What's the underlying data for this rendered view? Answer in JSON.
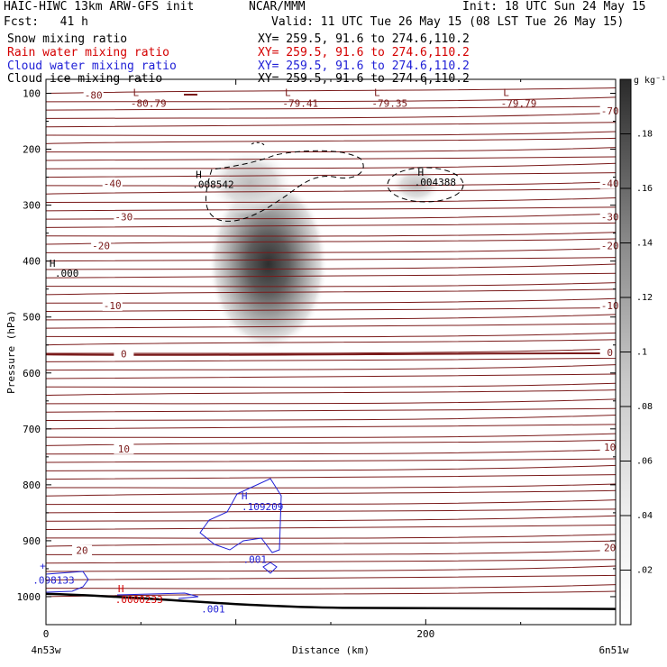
{
  "header": {
    "left1": "HAIC-HIWC 13km ARW-GFS init",
    "center1": "NCAR/MMM",
    "right1": "Init: 18 UTC Sun 24 May 15",
    "left2": "Fcst:   41 h",
    "right2": "Valid: 11 UTC Tue 26 May 15 (08 LST Tue 26 May 15)",
    "fields": [
      {
        "name": "Snow mixing ratio",
        "xy": "XY= 259.5, 91.6 to 274.6,110.2",
        "color": "#000000"
      },
      {
        "name": "Rain water mixing ratio",
        "xy": "XY= 259.5, 91.6 to 274.6,110.2",
        "color": "#d40000"
      },
      {
        "name": "Cloud water mixing ratio",
        "xy": "XY= 259.5, 91.6 to 274.6,110.2",
        "color": "#1f1fd6"
      },
      {
        "name": "Cloud ice mixing ratio",
        "xy": "XY= 259.5, 91.6 to 274.6,110.2",
        "color": "#000000"
      }
    ]
  },
  "chart_data": {
    "type": "heatmap",
    "title": "HAIC-HIWC 13km ARW-GFS init",
    "xlabel": "Distance (km)",
    "ylabel": "Pressure (hPa)",
    "xlim": [
      0,
      300
    ],
    "ylim_pressure": [
      1050,
      75
    ],
    "x_ticks": [
      0,
      200
    ],
    "y_ticks": [
      100,
      200,
      300,
      400,
      500,
      600,
      700,
      800,
      900,
      1000
    ],
    "x_endpoints": {
      "left": "4n53w",
      "right": "6n51w"
    },
    "colorbar": {
      "unit": "g kg⁻¹",
      "ticks": [
        ".02",
        ".04",
        ".06",
        ".08",
        ".1",
        ".12",
        ".14",
        ".16",
        ".18"
      ],
      "min": 0,
      "max": 0.2
    },
    "temperature_contour_color": "#7a1a1a",
    "temperature_labels": [
      {
        "value": "-80",
        "x_km": 25,
        "p": 105
      },
      {
        "value": "-70",
        "x_km": 297,
        "p": 133
      },
      {
        "value": "-40",
        "x_km": 35,
        "p": 263
      },
      {
        "value": "-40",
        "x_km": 297,
        "p": 263
      },
      {
        "value": "-30",
        "x_km": 41,
        "p": 322
      },
      {
        "value": "-30",
        "x_km": 297,
        "p": 322
      },
      {
        "value": "-20",
        "x_km": 29,
        "p": 374
      },
      {
        "value": "-20",
        "x_km": 297,
        "p": 374
      },
      {
        "value": "-10",
        "x_km": 35,
        "p": 481
      },
      {
        "value": "-10",
        "x_km": 297,
        "p": 481
      },
      {
        "value": "0",
        "x_km": 41,
        "p": 567
      },
      {
        "value": "0",
        "x_km": 297,
        "p": 565
      },
      {
        "value": "10",
        "x_km": 41,
        "p": 737
      },
      {
        "value": "10",
        "x_km": 297,
        "p": 734
      },
      {
        "value": "20",
        "x_km": 19,
        "p": 919
      },
      {
        "value": "20",
        "x_km": 297,
        "p": 914
      }
    ],
    "temperature_minima": [
      {
        "label": "-80.79",
        "x_km": 54,
        "p": 116
      },
      {
        "label": "-79.41",
        "x_km": 134,
        "p": 116
      },
      {
        "label": "-79.35",
        "x_km": 181,
        "p": 116
      },
      {
        "label": "-79.79",
        "x_km": 249,
        "p": 116
      }
    ],
    "snow_maxima": [
      {
        "label": ".008542",
        "x_km": 88,
        "p": 261
      },
      {
        "label": ".004388",
        "x_km": 205,
        "p": 257
      },
      {
        "label": ".000",
        "x_km": 11,
        "p": 420
      }
    ],
    "cloud_water_maxima": [
      {
        "label": ".109209",
        "x_km": 114,
        "p": 839
      },
      {
        "label": ".001",
        "x_km": 110,
        "p": 933
      },
      {
        "label": ".098133",
        "x_km": 4,
        "p": 970
      },
      {
        "label": ".001",
        "x_km": 88,
        "p": 1022
      }
    ],
    "rain_water_maxima": [
      {
        "label": ".0000233",
        "x_km": 49,
        "p": 1005
      }
    ],
    "cloud_ice_core": {
      "x_km": 117,
      "p": 405,
      "max": 0.19
    },
    "surface_p_start": 995,
    "surface_p_end": 1022
  }
}
